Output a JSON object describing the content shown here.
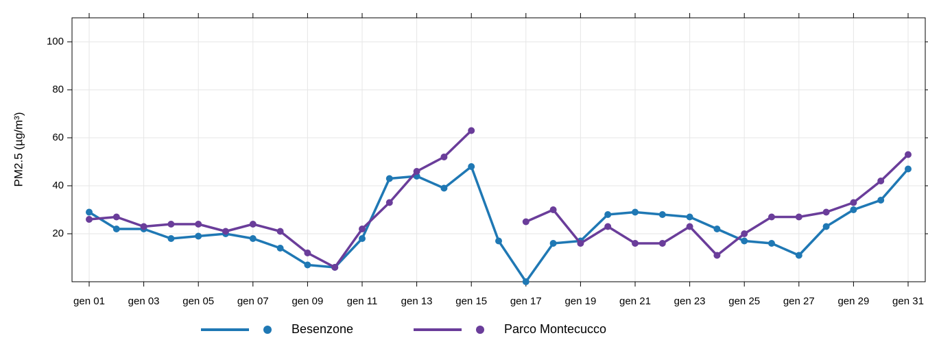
{
  "chart_data": {
    "type": "line",
    "categories": [
      "gen 01",
      null,
      "gen 03",
      null,
      "gen 05",
      null,
      "gen 07",
      null,
      "gen 09",
      null,
      "gen 11",
      null,
      "gen 13",
      null,
      "gen 15",
      null,
      "gen 17",
      null,
      "gen 19",
      null,
      "gen 21",
      null,
      "gen 23",
      null,
      "gen 25",
      null,
      "gen 27",
      null,
      "gen 29",
      null,
      "gen 31"
    ],
    "y_label": "PM2.5 (µg/m³)",
    "series": [
      {
        "name": "Besenzone",
        "color": "#1f78b4",
        "values": [
          29,
          22,
          22,
          18,
          19,
          20,
          18,
          14,
          7,
          6,
          18,
          43,
          44,
          39,
          48,
          17,
          0,
          16,
          17,
          28,
          29,
          28,
          27,
          22,
          17,
          16,
          11,
          23,
          30,
          34,
          47
        ]
      },
      {
        "name": "Parco Montecucco",
        "color": "#6a3d9a",
        "values": [
          26,
          27,
          23,
          24,
          24,
          21,
          24,
          21,
          12,
          6,
          22,
          33,
          46,
          52,
          63,
          null,
          25,
          30,
          16,
          23,
          16,
          16,
          23,
          11,
          20,
          27,
          27,
          29,
          33,
          42,
          53
        ]
      }
    ],
    "ylim": [
      0,
      110
    ],
    "yticks": [
      20,
      40,
      60,
      80,
      100
    ],
    "grid": true,
    "legend": "bottom"
  }
}
